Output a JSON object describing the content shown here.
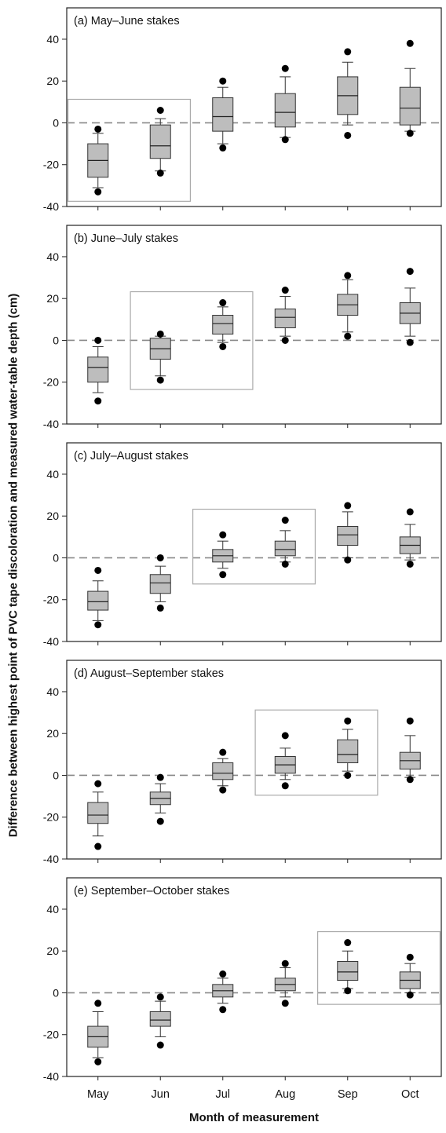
{
  "figure": {
    "ylabel": "Difference between highest point of PVC tape discoloration and measured water-table depth (cm)",
    "xlabel": "Month of measurement"
  },
  "chart_data": [
    {
      "type": "box",
      "title": "(a) May–June stakes",
      "categories": [
        "May",
        "Jun",
        "Jul",
        "Aug",
        "Sep",
        "Oct"
      ],
      "ylim": [
        -40,
        55
      ],
      "yticks": [
        -40,
        -20,
        0,
        20,
        40
      ],
      "reference_line": 0,
      "highlight": [
        "May",
        "Jun"
      ],
      "boxes": [
        {
          "q1": -26,
          "median": -18,
          "q3": -10,
          "wlo": -31,
          "whi": -5,
          "out_lo": -33,
          "out_hi": -3
        },
        {
          "q1": -17,
          "median": -11,
          "q3": -1,
          "wlo": -23,
          "whi": 2,
          "out_lo": -24,
          "out_hi": 6
        },
        {
          "q1": -4,
          "median": 3,
          "q3": 12,
          "wlo": -10,
          "whi": 17,
          "out_lo": -12,
          "out_hi": 20
        },
        {
          "q1": -2,
          "median": 5,
          "q3": 14,
          "wlo": -7,
          "whi": 22,
          "out_lo": -8,
          "out_hi": 26
        },
        {
          "q1": 4,
          "median": 13,
          "q3": 22,
          "wlo": -1,
          "whi": 29,
          "out_lo": -6,
          "out_hi": 34
        },
        {
          "q1": -1,
          "median": 7,
          "q3": 17,
          "wlo": -4,
          "whi": 26,
          "out_lo": -5,
          "out_hi": 38
        }
      ]
    },
    {
      "type": "box",
      "title": "(b) June–July stakes",
      "categories": [
        "May",
        "Jun",
        "Jul",
        "Aug",
        "Sep",
        "Oct"
      ],
      "ylim": [
        -40,
        55
      ],
      "yticks": [
        -40,
        -20,
        0,
        20,
        40
      ],
      "reference_line": 0,
      "highlight": [
        "Jun",
        "Jul"
      ],
      "boxes": [
        {
          "q1": -20,
          "median": -13,
          "q3": -8,
          "wlo": -25,
          "whi": -3,
          "out_lo": -29,
          "out_hi": 0
        },
        {
          "q1": -9,
          "median": -4,
          "q3": 1,
          "wlo": -17,
          "whi": 2,
          "out_lo": -19,
          "out_hi": 3
        },
        {
          "q1": 3,
          "median": 8,
          "q3": 12,
          "wlo": -1,
          "whi": 16,
          "out_lo": -3,
          "out_hi": 18
        },
        {
          "q1": 6,
          "median": 11,
          "q3": 15,
          "wlo": 2,
          "whi": 21,
          "out_lo": 0,
          "out_hi": 24
        },
        {
          "q1": 12,
          "median": 17,
          "q3": 22,
          "wlo": 4,
          "whi": 29,
          "out_lo": 2,
          "out_hi": 31
        },
        {
          "q1": 8,
          "median": 13,
          "q3": 18,
          "wlo": 2,
          "whi": 25,
          "out_lo": -1,
          "out_hi": 33
        }
      ]
    },
    {
      "type": "box",
      "title": "(c) July–August stakes",
      "categories": [
        "May",
        "Jun",
        "Jul",
        "Aug",
        "Sep",
        "Oct"
      ],
      "ylim": [
        -40,
        55
      ],
      "yticks": [
        -40,
        -20,
        0,
        20,
        40
      ],
      "reference_line": 0,
      "highlight": [
        "Jul",
        "Aug"
      ],
      "boxes": [
        {
          "q1": -25,
          "median": -21,
          "q3": -16,
          "wlo": -30,
          "whi": -11,
          "out_lo": -32,
          "out_hi": -6
        },
        {
          "q1": -17,
          "median": -12,
          "q3": -8,
          "wlo": -21,
          "whi": -4,
          "out_lo": -24,
          "out_hi": 0
        },
        {
          "q1": -2,
          "median": 1,
          "q3": 4,
          "wlo": -5,
          "whi": 8,
          "out_lo": -8,
          "out_hi": 11
        },
        {
          "q1": 1,
          "median": 4,
          "q3": 8,
          "wlo": -2,
          "whi": 13,
          "out_lo": -3,
          "out_hi": 18
        },
        {
          "q1": 6,
          "median": 11,
          "q3": 15,
          "wlo": 0,
          "whi": 22,
          "out_lo": -1,
          "out_hi": 25
        },
        {
          "q1": 2,
          "median": 6,
          "q3": 10,
          "wlo": -1,
          "whi": 16,
          "out_lo": -3,
          "out_hi": 22
        }
      ]
    },
    {
      "type": "box",
      "title": "(d) August–September stakes",
      "categories": [
        "May",
        "Jun",
        "Jul",
        "Aug",
        "Sep",
        "Oct"
      ],
      "ylim": [
        -40,
        55
      ],
      "yticks": [
        -40,
        -20,
        0,
        20,
        40
      ],
      "reference_line": 0,
      "highlight": [
        "Aug",
        "Sep"
      ],
      "boxes": [
        {
          "q1": -23,
          "median": -19,
          "q3": -13,
          "wlo": -29,
          "whi": -8,
          "out_lo": -34,
          "out_hi": -4
        },
        {
          "q1": -14,
          "median": -11,
          "q3": -8,
          "wlo": -18,
          "whi": -4,
          "out_lo": -22,
          "out_hi": -1
        },
        {
          "q1": -2,
          "median": 1,
          "q3": 6,
          "wlo": -5,
          "whi": 8,
          "out_lo": -7,
          "out_hi": 11
        },
        {
          "q1": 1,
          "median": 5,
          "q3": 9,
          "wlo": -2,
          "whi": 13,
          "out_lo": -5,
          "out_hi": 19
        },
        {
          "q1": 6,
          "median": 10,
          "q3": 17,
          "wlo": 2,
          "whi": 22,
          "out_lo": 0,
          "out_hi": 26
        },
        {
          "q1": 3,
          "median": 7,
          "q3": 11,
          "wlo": -1,
          "whi": 19,
          "out_lo": -2,
          "out_hi": 26
        }
      ]
    },
    {
      "type": "box",
      "title": "(e) September–October stakes",
      "categories": [
        "May",
        "Jun",
        "Jul",
        "Aug",
        "Sep",
        "Oct"
      ],
      "ylim": [
        -40,
        55
      ],
      "yticks": [
        -40,
        -20,
        0,
        20,
        40
      ],
      "reference_line": 0,
      "highlight": [
        "Sep",
        "Oct"
      ],
      "boxes": [
        {
          "q1": -26,
          "median": -21,
          "q3": -16,
          "wlo": -31,
          "whi": -9,
          "out_lo": -33,
          "out_hi": -5
        },
        {
          "q1": -16,
          "median": -13,
          "q3": -9,
          "wlo": -21,
          "whi": -4,
          "out_lo": -25,
          "out_hi": -2
        },
        {
          "q1": -2,
          "median": 1,
          "q3": 4,
          "wlo": -5,
          "whi": 7,
          "out_lo": -8,
          "out_hi": 9
        },
        {
          "q1": 1,
          "median": 4,
          "q3": 7,
          "wlo": -2,
          "whi": 12,
          "out_lo": -5,
          "out_hi": 14
        },
        {
          "q1": 6,
          "median": 10,
          "q3": 15,
          "wlo": 2,
          "whi": 20,
          "out_lo": 1,
          "out_hi": 24
        },
        {
          "q1": 2,
          "median": 6,
          "q3": 10,
          "wlo": 0,
          "whi": 14,
          "out_lo": -1,
          "out_hi": 17
        }
      ]
    }
  ]
}
